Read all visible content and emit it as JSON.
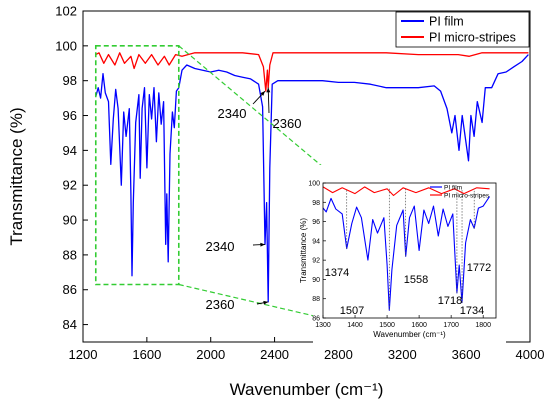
{
  "chart_data": [
    {
      "type": "line",
      "xlabel": "Wavenumber (cm⁻¹)",
      "ylabel": "Transmittance (%)",
      "xlim": [
        1200,
        4000
      ],
      "ylim": [
        83,
        102
      ],
      "x_ticks": [
        "1200",
        "1600",
        "2000",
        "2400",
        "2800",
        "3200",
        "3600",
        "4000"
      ],
      "y_ticks": [
        "84",
        "86",
        "88",
        "90",
        "92",
        "94",
        "96",
        "98",
        "100",
        "102"
      ],
      "grid": false,
      "legend_position": "top-right",
      "series": [
        {
          "name": "PI film",
          "color": "#0000ff",
          "points": [
            [
              1280,
              97.1
            ],
            [
              1295,
              97.6
            ],
            [
              1310,
              97.0
            ],
            [
              1325,
              98.4
            ],
            [
              1340,
              97.3
            ],
            [
              1360,
              96.8
            ],
            [
              1374,
              93.2
            ],
            [
              1390,
              95.8
            ],
            [
              1405,
              97.5
            ],
            [
              1420,
              96.4
            ],
            [
              1440,
              92.0
            ],
            [
              1455,
              96.2
            ],
            [
              1470,
              94.8
            ],
            [
              1490,
              96.4
            ],
            [
              1500,
              91.5
            ],
            [
              1507,
              86.8
            ],
            [
              1515,
              91.0
            ],
            [
              1530,
              95.6
            ],
            [
              1550,
              97.2
            ],
            [
              1558,
              92.4
            ],
            [
              1570,
              96.4
            ],
            [
              1585,
              97.6
            ],
            [
              1600,
              93.0
            ],
            [
              1615,
              97.2
            ],
            [
              1630,
              95.8
            ],
            [
              1645,
              97.6
            ],
            [
              1660,
              94.5
            ],
            [
              1675,
              97.3
            ],
            [
              1690,
              95.5
            ],
            [
              1705,
              96.8
            ],
            [
              1718,
              88.6
            ],
            [
              1725,
              91.5
            ],
            [
              1734,
              87.6
            ],
            [
              1745,
              93.8
            ],
            [
              1760,
              96.2
            ],
            [
              1772,
              95.3
            ],
            [
              1785,
              97.4
            ],
            [
              1800,
              97.6
            ],
            [
              1820,
              98.6
            ],
            [
              1850,
              98.9
            ],
            [
              1900,
              98.7
            ],
            [
              1950,
              98.6
            ],
            [
              2000,
              98.5
            ],
            [
              2050,
              98.6
            ],
            [
              2100,
              98.5
            ],
            [
              2150,
              98.3
            ],
            [
              2200,
              98.2
            ],
            [
              2250,
              98.1
            ],
            [
              2300,
              97.8
            ],
            [
              2325,
              96.5
            ],
            [
              2340,
              88.6
            ],
            [
              2350,
              91.0
            ],
            [
              2360,
              85.3
            ],
            [
              2370,
              93.0
            ],
            [
              2385,
              97.8
            ],
            [
              2420,
              98.0
            ],
            [
              2500,
              98.0
            ],
            [
              2600,
              98.0
            ],
            [
              2700,
              98.0
            ],
            [
              2800,
              97.9
            ],
            [
              2900,
              97.9
            ],
            [
              3000,
              97.8
            ],
            [
              3100,
              97.6
            ],
            [
              3200,
              97.6
            ],
            [
              3300,
              97.6
            ],
            [
              3400,
              97.7
            ],
            [
              3440,
              97.4
            ],
            [
              3480,
              96.4
            ],
            [
              3510,
              95.0
            ],
            [
              3530,
              96.0
            ],
            [
              3555,
              94.0
            ],
            [
              3575,
              96.0
            ],
            [
              3600,
              94.4
            ],
            [
              3615,
              93.4
            ],
            [
              3630,
              96.0
            ],
            [
              3650,
              94.8
            ],
            [
              3670,
              96.8
            ],
            [
              3700,
              95.6
            ],
            [
              3720,
              97.6
            ],
            [
              3760,
              97.6
            ],
            [
              3800,
              98.4
            ],
            [
              3850,
              98.5
            ],
            [
              3900,
              98.8
            ],
            [
              3950,
              99.1
            ],
            [
              3990,
              99.5
            ]
          ]
        },
        {
          "name": "PI micro-stripes",
          "color": "#ff0000",
          "points": [
            [
              1280,
              99.5
            ],
            [
              1300,
              99.6
            ],
            [
              1330,
              99.0
            ],
            [
              1360,
              99.5
            ],
            [
              1400,
              98.9
            ],
            [
              1430,
              99.6
            ],
            [
              1460,
              99.0
            ],
            [
              1500,
              99.4
            ],
            [
              1520,
              98.7
            ],
            [
              1550,
              99.5
            ],
            [
              1590,
              99.0
            ],
            [
              1630,
              99.5
            ],
            [
              1670,
              98.9
            ],
            [
              1710,
              99.4
            ],
            [
              1740,
              98.9
            ],
            [
              1780,
              99.5
            ],
            [
              1820,
              99.4
            ],
            [
              1900,
              99.6
            ],
            [
              2000,
              99.6
            ],
            [
              2100,
              99.6
            ],
            [
              2200,
              99.6
            ],
            [
              2300,
              99.5
            ],
            [
              2330,
              98.8
            ],
            [
              2345,
              97.4
            ],
            [
              2355,
              98.6
            ],
            [
              2360,
              97.6
            ],
            [
              2370,
              98.9
            ],
            [
              2390,
              99.6
            ],
            [
              2500,
              99.6
            ],
            [
              2700,
              99.6
            ],
            [
              2900,
              99.6
            ],
            [
              3100,
              99.6
            ],
            [
              3300,
              99.5
            ],
            [
              3450,
              99.5
            ],
            [
              3550,
              99.5
            ],
            [
              3620,
              99.4
            ],
            [
              3700,
              99.6
            ],
            [
              3800,
              99.6
            ],
            [
              3900,
              99.6
            ],
            [
              3990,
              99.6
            ]
          ]
        }
      ],
      "annotations": [
        {
          "text": "2340",
          "x": 2340,
          "y": 97.4
        },
        {
          "text": "2360",
          "x": 2360,
          "y": 97.6
        },
        {
          "text": "2340",
          "x": 2340,
          "y": 88.6
        },
        {
          "text": "2360",
          "x": 2360,
          "y": 85.3
        }
      ],
      "highlight_box": {
        "color": "#33cc33",
        "style": "dashed",
        "x_range": [
          1280,
          1800
        ],
        "y_range": [
          86.3,
          100.0
        ]
      }
    },
    {
      "type": "line",
      "role": "inset",
      "xlabel": "Wavenumber (cm⁻¹)",
      "ylabel": "Transmittance (%)",
      "xlim": [
        1300,
        1840
      ],
      "ylim": [
        86,
        100
      ],
      "x_ticks": [
        "1300",
        "1400",
        "1500",
        "1600",
        "1700",
        "1800"
      ],
      "y_ticks": [
        "86",
        "88",
        "90",
        "92",
        "94",
        "96",
        "98",
        "100"
      ],
      "legend_position": "top-right",
      "series_names": [
        "PI film",
        "PI micro-stripes"
      ],
      "annotations": [
        {
          "text": "1374",
          "x": 1374,
          "y": 93.2
        },
        {
          "text": "1507",
          "x": 1507,
          "y": 86.8
        },
        {
          "text": "1558",
          "x": 1558,
          "y": 92.4
        },
        {
          "text": "1718",
          "x": 1718,
          "y": 88.6
        },
        {
          "text": "1734",
          "x": 1734,
          "y": 87.6
        },
        {
          "text": "1772",
          "x": 1772,
          "y": 95.3
        }
      ]
    }
  ]
}
